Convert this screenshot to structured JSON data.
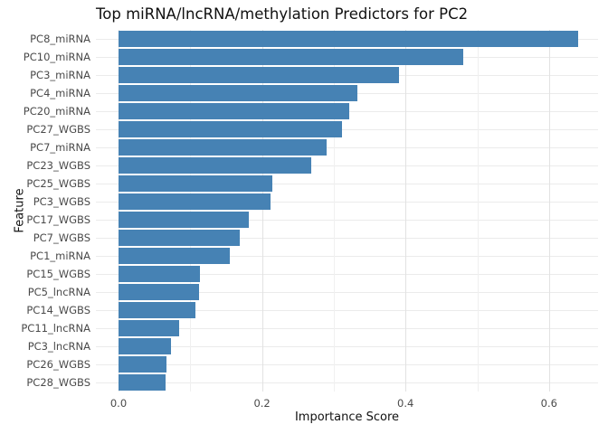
{
  "title": "Top miRNA/lncRNA/methylation Predictors for PC2",
  "colors": {
    "bar": "#4682b4",
    "grid_major": "#e2e2e2",
    "grid_minor": "#f0f0f0",
    "background": "#ffffff",
    "title_text": "#111111",
    "tick_text": "#4a4a4a"
  },
  "chart_data": {
    "type": "bar",
    "orientation": "horizontal",
    "title": "Top miRNA/lncRNA/methylation Predictors for PC2",
    "xlabel": "Importance Score",
    "ylabel": "Feature",
    "categories": [
      "PC8_miRNA",
      "PC10_miRNA",
      "PC3_miRNA",
      "PC4_miRNA",
      "PC20_miRNA",
      "PC27_WGBS",
      "PC7_miRNA",
      "PC23_WGBS",
      "PC25_WGBS",
      "PC3_WGBS",
      "PC17_WGBS",
      "PC7_WGBS",
      "PC1_miRNA",
      "PC15_WGBS",
      "PC5_lncRNA",
      "PC14_WGBS",
      "PC11_lncRNA",
      "PC3_lncRNA",
      "PC26_WGBS",
      "PC28_WGBS"
    ],
    "values": [
      0.64,
      0.481,
      0.391,
      0.333,
      0.321,
      0.312,
      0.29,
      0.268,
      0.215,
      0.212,
      0.181,
      0.169,
      0.155,
      0.113,
      0.112,
      0.107,
      0.085,
      0.073,
      0.067,
      0.065
    ],
    "xlim": [
      -0.032,
      0.668
    ],
    "xticks": [
      0.0,
      0.2,
      0.4,
      0.6
    ],
    "xtick_labels": [
      "0.0",
      "0.2",
      "0.4",
      "0.6"
    ],
    "minor_xticks": [
      0.1,
      0.3,
      0.5
    ],
    "grid": true,
    "legend": false,
    "bar_color": "#4682b4"
  }
}
